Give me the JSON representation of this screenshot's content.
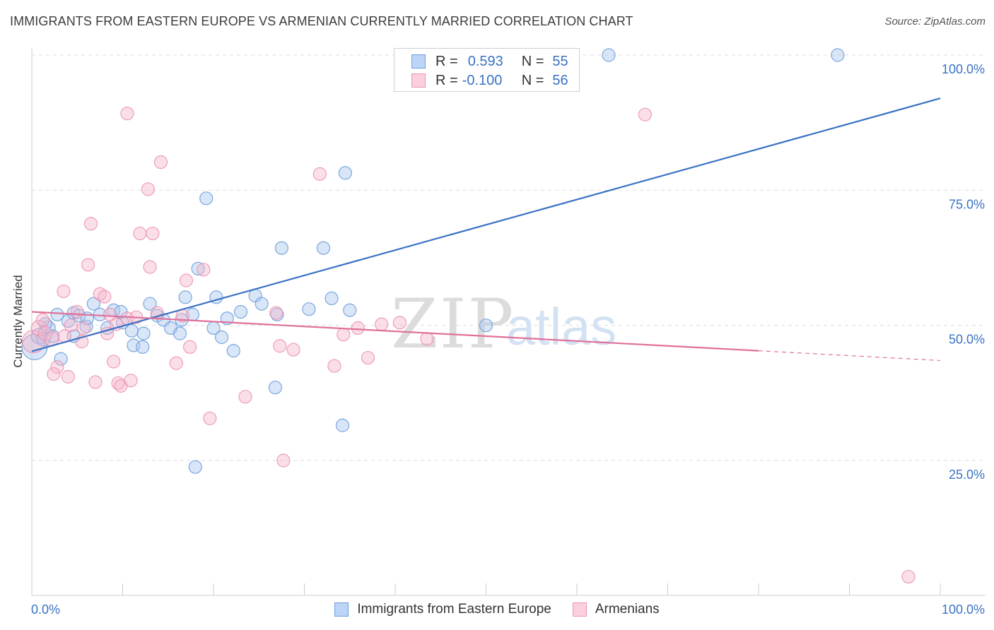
{
  "title": "IMMIGRANTS FROM EASTERN EUROPE VS ARMENIAN CURRENTLY MARRIED CORRELATION CHART",
  "source": "Source: ZipAtlas.com",
  "watermark": {
    "zip": "ZIP",
    "atlas": "atlas"
  },
  "colors": {
    "blue": "#3a72c4",
    "blue_fill": "#a9c8f0",
    "blue_stroke": "#6f9fdc",
    "pink": "#e0709a",
    "pink_fill": "#f6b8cc",
    "pink_stroke": "#eb94b3",
    "grid": "#dddddd",
    "axis_text": "#3a72c4"
  },
  "legend": {
    "rows": [
      {
        "r_label": "R =",
        "r_value": "0.593",
        "n_label": "N =",
        "n_value": "55"
      },
      {
        "r_label": "R =",
        "r_value": "-0.100",
        "n_label": "N =",
        "n_value": "56"
      }
    ]
  },
  "bottom_legend": [
    "Immigrants from Eastern Europe",
    "Armenians"
  ],
  "chart_data": {
    "type": "scatter",
    "title": "IMMIGRANTS FROM EASTERN EUROPE VS ARMENIAN CURRENTLY MARRIED CORRELATION CHART",
    "xlabel": "",
    "ylabel": "Currently Married",
    "xlim": [
      0,
      100
    ],
    "ylim": [
      0,
      103
    ],
    "x_tick_labels": [
      "0.0%",
      "100.0%"
    ],
    "y_ticks": [
      25,
      50,
      75,
      100
    ],
    "y_tick_labels": [
      "25.0%",
      "50.0%",
      "75.0%",
      "100.0%"
    ],
    "series": [
      {
        "name": "Immigrants from Eastern Europe",
        "color": "blue",
        "trend": {
          "x": [
            0,
            100
          ],
          "y": [
            45.2,
            92.0
          ],
          "dash_from": null
        },
        "points": [
          [
            0.3,
            46.0,
            18
          ],
          [
            0.8,
            48.0,
            11
          ],
          [
            1.3,
            47.5,
            10
          ],
          [
            1.8,
            49.5,
            10
          ],
          [
            2.3,
            48.0,
            9
          ],
          [
            3.2,
            43.8,
            9
          ],
          [
            4.0,
            50.8,
            9
          ],
          [
            4.6,
            52.3,
            9
          ],
          [
            5.2,
            51.8,
            9
          ],
          [
            6.0,
            49.8,
            9
          ],
          [
            6.8,
            54.0,
            9
          ],
          [
            7.5,
            52.0,
            9
          ],
          [
            8.3,
            49.5,
            9
          ],
          [
            9.0,
            52.8,
            9
          ],
          [
            10.0,
            50.5,
            9
          ],
          [
            11.2,
            46.3,
            9
          ],
          [
            12.3,
            48.5,
            9
          ],
          [
            13.0,
            54.0,
            9
          ],
          [
            13.8,
            51.8,
            9
          ],
          [
            14.5,
            51.0,
            9
          ],
          [
            15.3,
            49.5,
            9
          ],
          [
            16.3,
            48.5,
            9
          ],
          [
            16.9,
            55.2,
            9
          ],
          [
            17.7,
            52.0,
            9
          ],
          [
            18.3,
            60.5,
            9
          ],
          [
            18.0,
            23.8,
            9
          ],
          [
            19.2,
            73.5,
            9
          ],
          [
            20.3,
            55.2,
            9
          ],
          [
            20.9,
            47.8,
            9
          ],
          [
            21.5,
            51.3,
            9
          ],
          [
            22.2,
            45.3,
            9
          ],
          [
            23.0,
            52.5,
            9
          ],
          [
            24.6,
            55.5,
            9
          ],
          [
            25.3,
            54.0,
            9
          ],
          [
            26.8,
            38.5,
            9
          ],
          [
            27.5,
            64.3,
            9
          ],
          [
            30.5,
            53.0,
            9
          ],
          [
            32.1,
            64.3,
            9
          ],
          [
            33.0,
            55.0,
            9
          ],
          [
            34.5,
            78.2,
            9
          ],
          [
            35.0,
            52.8,
            9
          ],
          [
            34.2,
            31.5,
            9
          ],
          [
            50.0,
            50.0,
            9
          ],
          [
            63.5,
            100.0,
            9
          ],
          [
            88.7,
            100.0,
            9
          ],
          [
            6.1,
            51.3,
            9
          ],
          [
            9.8,
            52.5,
            9
          ],
          [
            12.2,
            46.0,
            9
          ],
          [
            16.5,
            51.0,
            9
          ],
          [
            27.0,
            52.0,
            9
          ],
          [
            11.0,
            49.0,
            9
          ],
          [
            20.0,
            49.5,
            9
          ],
          [
            1.5,
            50.3,
            9
          ],
          [
            2.8,
            52.0,
            9
          ],
          [
            4.6,
            48.0,
            9
          ]
        ]
      },
      {
        "name": "Armenians",
        "color": "pink",
        "trend": {
          "x": [
            0,
            100
          ],
          "y": [
            52.5,
            43.5
          ],
          "dash_from": 80
        },
        "points": [
          [
            0.2,
            47.0,
            16
          ],
          [
            0.8,
            49.5,
            11
          ],
          [
            1.5,
            48.5,
            10
          ],
          [
            2.2,
            47.5,
            10
          ],
          [
            2.8,
            42.3,
            9
          ],
          [
            3.5,
            56.3,
            9
          ],
          [
            4.3,
            50.0,
            9
          ],
          [
            5.0,
            52.5,
            9
          ],
          [
            5.5,
            47.0,
            9
          ],
          [
            6.2,
            61.2,
            9
          ],
          [
            6.5,
            68.8,
            9
          ],
          [
            7.0,
            39.5,
            9
          ],
          [
            7.5,
            55.8,
            9
          ],
          [
            8.0,
            55.3,
            9
          ],
          [
            8.6,
            52.0,
            9
          ],
          [
            9.0,
            43.3,
            9
          ],
          [
            9.5,
            39.3,
            9
          ],
          [
            9.8,
            38.8,
            9
          ],
          [
            10.5,
            51.3,
            9
          ],
          [
            10.5,
            89.2,
            9
          ],
          [
            10.9,
            39.8,
            9
          ],
          [
            11.9,
            67.0,
            9
          ],
          [
            12.8,
            75.2,
            9
          ],
          [
            13.0,
            60.8,
            9
          ],
          [
            13.3,
            67.0,
            9
          ],
          [
            13.8,
            52.3,
            9
          ],
          [
            14.2,
            80.2,
            9
          ],
          [
            15.9,
            43.0,
            9
          ],
          [
            16.6,
            51.8,
            9
          ],
          [
            17.0,
            58.3,
            9
          ],
          [
            17.4,
            46.0,
            9
          ],
          [
            18.9,
            60.3,
            9
          ],
          [
            19.6,
            32.8,
            9
          ],
          [
            23.5,
            36.8,
            9
          ],
          [
            26.9,
            52.3,
            9
          ],
          [
            27.3,
            46.2,
            9
          ],
          [
            27.7,
            25.0,
            9
          ],
          [
            28.8,
            45.5,
            9
          ],
          [
            31.7,
            78.0,
            9
          ],
          [
            33.3,
            42.5,
            9
          ],
          [
            34.3,
            48.3,
            9
          ],
          [
            35.9,
            49.5,
            9
          ],
          [
            37.0,
            44.0,
            9
          ],
          [
            38.5,
            50.2,
            9
          ],
          [
            40.5,
            50.5,
            9
          ],
          [
            43.5,
            47.5,
            9
          ],
          [
            67.5,
            89.0,
            9
          ],
          [
            96.5,
            3.5,
            9
          ],
          [
            1.2,
            51.0,
            9
          ],
          [
            3.6,
            48.0,
            9
          ],
          [
            5.7,
            49.5,
            9
          ],
          [
            8.3,
            48.5,
            9
          ],
          [
            11.5,
            51.5,
            9
          ],
          [
            2.4,
            41.0,
            9
          ],
          [
            4.0,
            40.5,
            9
          ],
          [
            9.3,
            50.2,
            9
          ]
        ]
      }
    ]
  }
}
